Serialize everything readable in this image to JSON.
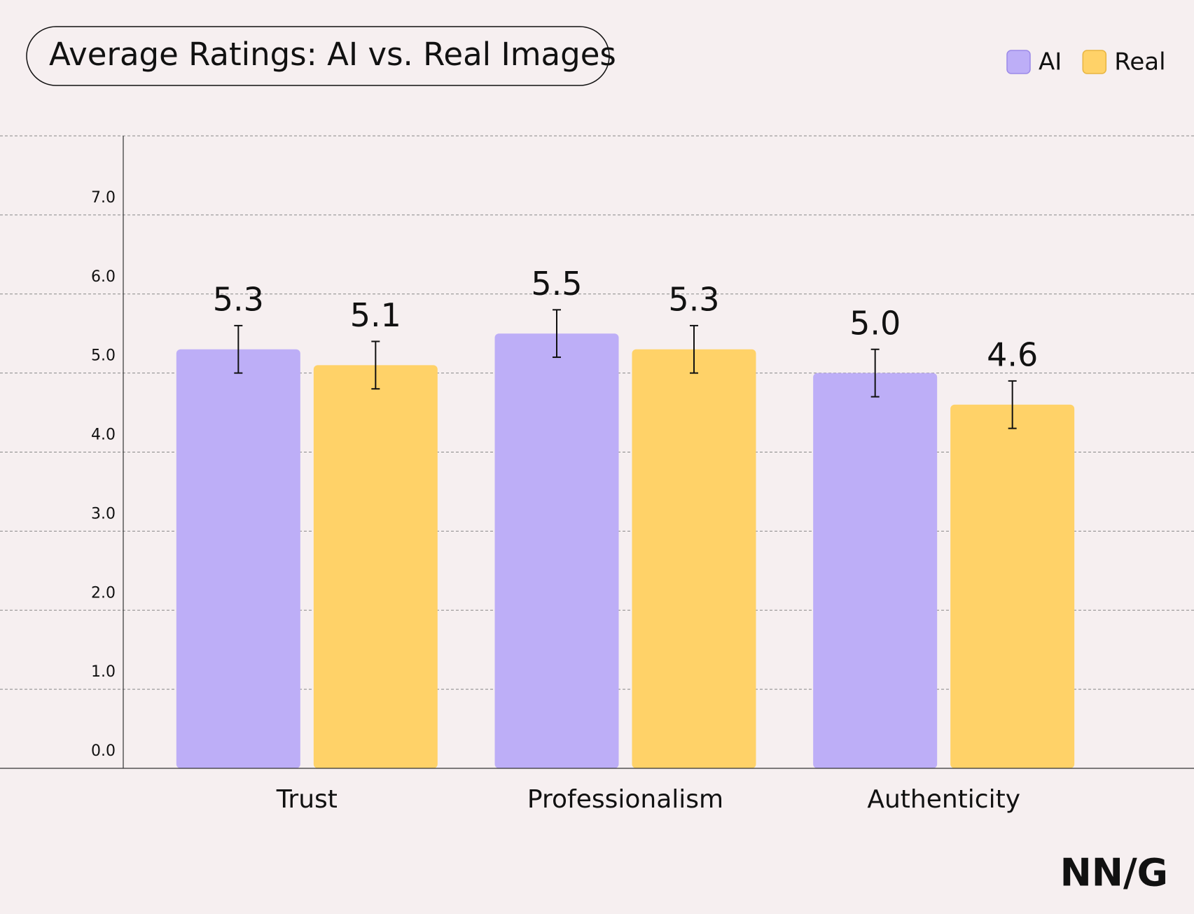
{
  "chart_data": {
    "type": "bar",
    "title": "Average Ratings: AI vs. Real Images",
    "categories": [
      "Trust",
      "Professionalism",
      "Authenticity"
    ],
    "series": [
      {
        "name": "AI",
        "color": "#bdaef7",
        "values": [
          5.3,
          5.5,
          5.0
        ],
        "value_labels": [
          "5.3",
          "5.5",
          "5.0"
        ],
        "errors": [
          0.3,
          0.3,
          0.3
        ]
      },
      {
        "name": "Real",
        "color": "#ffd268",
        "values": [
          5.1,
          5.3,
          4.6
        ],
        "value_labels": [
          "5.1",
          "5.3",
          "4.6"
        ],
        "errors": [
          0.3,
          0.3,
          0.3
        ]
      }
    ],
    "ylim": [
      0,
      8
    ],
    "yticks": [
      {
        "value": 0,
        "label": "0.0"
      },
      {
        "value": 1,
        "label": "1.0"
      },
      {
        "value": 2,
        "label": "2.0"
      },
      {
        "value": 3,
        "label": "3.0"
      },
      {
        "value": 4,
        "label": "4.0"
      },
      {
        "value": 5,
        "label": "5.0"
      },
      {
        "value": 6,
        "label": "6.0"
      },
      {
        "value": 7,
        "label": "7.0"
      }
    ],
    "grid": true,
    "legend": "top-right",
    "logo": "NN/G"
  }
}
